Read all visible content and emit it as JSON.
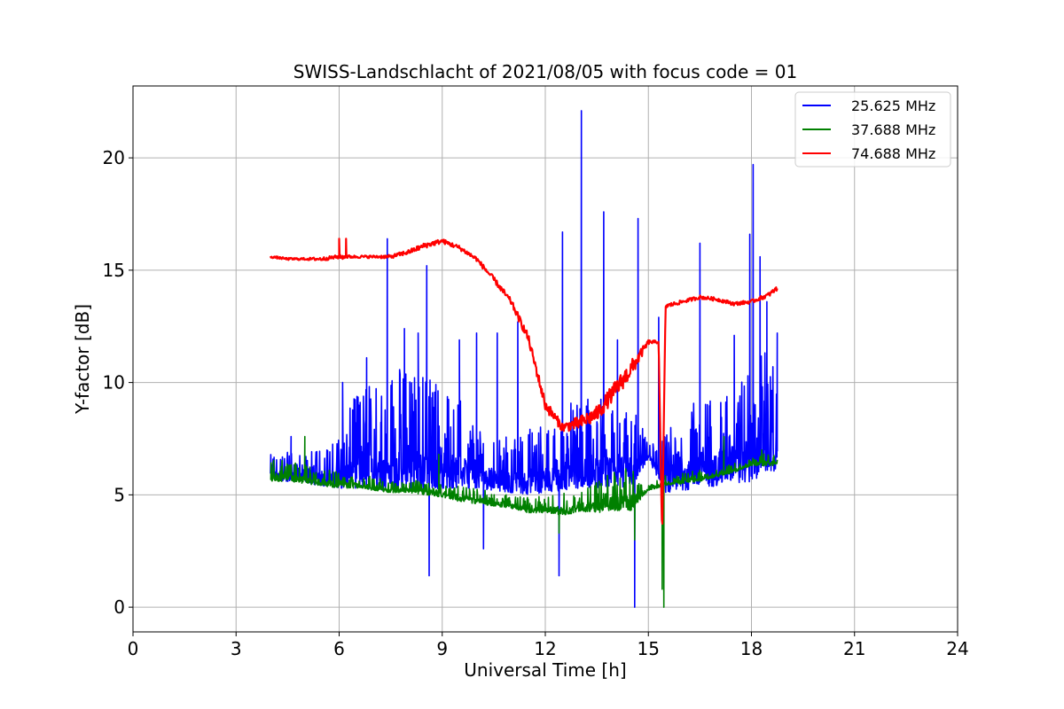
{
  "chart_data": {
    "type": "line",
    "title": "SWISS-Landschlacht of 2021/08/05 with focus code = 01",
    "xlabel": "Universal Time [h]",
    "ylabel": "Y-factor [dB]",
    "xlim": [
      0,
      24
    ],
    "ylim": [
      -1.1,
      23.2
    ],
    "xticks": [
      0,
      3,
      6,
      9,
      12,
      15,
      18,
      21,
      24
    ],
    "yticks": [
      0,
      5,
      10,
      15,
      20
    ],
    "grid": true,
    "legend_position": "top-right",
    "series": [
      {
        "name": "25.625 MHz",
        "color": "#0000ff",
        "x": [
          4.0,
          4.5,
          5.0,
          5.5,
          6.0,
          6.5,
          7.0,
          7.5,
          8.0,
          8.5,
          9.0,
          9.5,
          10.0,
          10.5,
          11.0,
          11.5,
          12.0,
          12.5,
          13.0,
          13.5,
          14.0,
          14.5,
          15.0,
          15.5,
          16.0,
          16.5,
          17.0,
          17.5,
          18.0,
          18.5,
          18.75
        ],
        "low": [
          5.7,
          5.6,
          5.5,
          5.4,
          5.3,
          5.3,
          5.2,
          5.2,
          5.2,
          5.2,
          5.3,
          5.3,
          5.3,
          5.2,
          5.1,
          5.0,
          5.1,
          5.2,
          5.3,
          5.3,
          5.4,
          5.3,
          6.6,
          5.0,
          5.2,
          5.3,
          5.4,
          5.5,
          5.6,
          6.0,
          6.1
        ],
        "high": [
          6.8,
          6.9,
          6.9,
          7.0,
          7.6,
          9.6,
          10.2,
          10.4,
          10.8,
          10.5,
          10.2,
          9.4,
          8.3,
          8.0,
          7.6,
          8.0,
          8.2,
          8.8,
          9.4,
          9.8,
          8.8,
          9.6,
          7.2,
          7.8,
          8.6,
          9.4,
          9.6,
          10.6,
          11.2,
          11.6,
          10.2
        ],
        "spikes": [
          [
            4.6,
            7.6
          ],
          [
            6.1,
            10.0
          ],
          [
            6.8,
            11.1
          ],
          [
            7.4,
            16.4
          ],
          [
            7.9,
            12.4
          ],
          [
            8.3,
            12.2
          ],
          [
            8.55,
            15.2
          ],
          [
            8.62,
            1.4
          ],
          [
            9.5,
            11.9
          ],
          [
            10.0,
            12.2
          ],
          [
            10.2,
            2.6
          ],
          [
            10.6,
            12.2
          ],
          [
            11.2,
            12.7
          ],
          [
            12.4,
            1.4
          ],
          [
            12.5,
            16.7
          ],
          [
            13.05,
            22.1
          ],
          [
            13.7,
            17.6
          ],
          [
            14.1,
            11.9
          ],
          [
            14.6,
            0.0
          ],
          [
            14.7,
            17.3
          ],
          [
            15.3,
            12.9
          ],
          [
            16.5,
            16.2
          ],
          [
            17.5,
            12.1
          ],
          [
            17.95,
            16.6
          ],
          [
            18.05,
            19.7
          ],
          [
            18.25,
            15.6
          ],
          [
            18.45,
            13.6
          ],
          [
            18.75,
            12.2
          ]
        ]
      },
      {
        "name": "37.688 MHz",
        "color": "#008000",
        "x": [
          4.0,
          4.5,
          5.0,
          5.5,
          6.0,
          6.5,
          7.0,
          7.5,
          8.0,
          8.5,
          9.0,
          9.5,
          10.0,
          10.5,
          11.0,
          11.5,
          12.0,
          12.5,
          13.0,
          13.5,
          14.0,
          14.5,
          15.0,
          15.5,
          16.0,
          16.5,
          17.0,
          17.5,
          18.0,
          18.5,
          18.75
        ],
        "low": [
          5.6,
          5.6,
          5.5,
          5.4,
          5.3,
          5.3,
          5.2,
          5.1,
          5.1,
          5.0,
          4.9,
          4.7,
          4.6,
          4.5,
          4.4,
          4.2,
          4.2,
          4.1,
          4.2,
          4.2,
          4.3,
          4.3,
          5.2,
          5.4,
          5.5,
          5.6,
          5.8,
          6.0,
          6.3,
          6.3,
          6.3
        ],
        "high": [
          6.6,
          6.5,
          6.4,
          6.2,
          6.0,
          5.9,
          5.8,
          5.7,
          5.7,
          5.6,
          5.5,
          5.4,
          5.3,
          5.1,
          5.0,
          4.9,
          5.0,
          5.1,
          5.3,
          5.6,
          6.1,
          6.3,
          5.4,
          5.9,
          6.0,
          6.1,
          6.2,
          6.4,
          6.7,
          6.9,
          6.8
        ],
        "spikes": [
          [
            5.0,
            7.6
          ],
          [
            8.9,
            6.8
          ],
          [
            12.4,
            3.3
          ],
          [
            14.6,
            3.0
          ],
          [
            15.4,
            0.8
          ],
          [
            15.45,
            0.0
          ],
          [
            17.2,
            7.6
          ],
          [
            18.3,
            7.0
          ]
        ]
      },
      {
        "name": "74.688 MHz",
        "color": "#ff0000",
        "x": [
          4.0,
          4.5,
          5.0,
          5.5,
          6.0,
          6.5,
          7.0,
          7.5,
          8.0,
          8.5,
          9.0,
          9.5,
          10.0,
          10.5,
          11.0,
          11.5,
          12.0,
          12.5,
          13.0,
          13.5,
          14.0,
          14.5,
          15.0,
          15.3,
          15.4,
          15.5,
          16.0,
          16.5,
          17.0,
          17.5,
          18.0,
          18.5,
          18.75
        ],
        "y": [
          15.6,
          15.5,
          15.5,
          15.5,
          15.6,
          15.6,
          15.6,
          15.6,
          15.8,
          16.1,
          16.3,
          16.0,
          15.5,
          14.6,
          13.6,
          12.0,
          9.0,
          8.0,
          8.2,
          8.6,
          9.6,
          10.6,
          11.8,
          11.8,
          3.0,
          13.4,
          13.6,
          13.8,
          13.7,
          13.5,
          13.6,
          13.9,
          14.2
        ],
        "noise": [
          0.05,
          0.05,
          0.05,
          0.08,
          0.08,
          0.06,
          0.06,
          0.08,
          0.1,
          0.12,
          0.1,
          0.1,
          0.1,
          0.12,
          0.14,
          0.2,
          0.25,
          0.2,
          0.3,
          0.35,
          0.4,
          0.4,
          0.1,
          0.05,
          0.05,
          0.1,
          0.08,
          0.08,
          0.08,
          0.08,
          0.08,
          0.1,
          0.1
        ],
        "spikes": [
          [
            6.0,
            16.4
          ],
          [
            6.2,
            16.4
          ],
          [
            6.1,
            15.5
          ]
        ]
      }
    ]
  }
}
